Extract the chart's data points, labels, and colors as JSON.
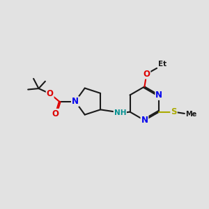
{
  "bg_color": "#e2e2e2",
  "bond_color": "#1a1a1a",
  "bond_width": 1.5,
  "atom_colors": {
    "N": "#0000ee",
    "O": "#dd0000",
    "S": "#aaaa00",
    "NH": "#009090",
    "C": "#1a1a1a"
  },
  "font_size_atom": 8.5,
  "font_size_small": 7.0
}
